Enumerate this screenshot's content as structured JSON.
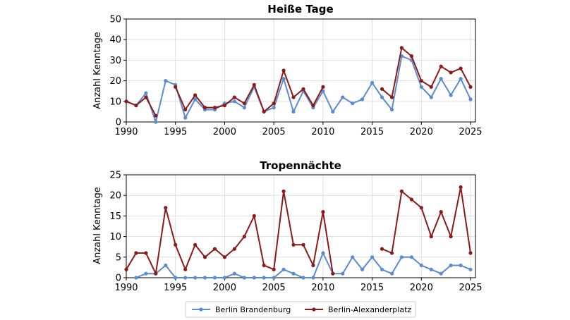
{
  "colors": {
    "brandenburg": "#5b8bd0",
    "alexanderplatz": "#8b1a1a",
    "grid": "#d9d9d9"
  },
  "legend": {
    "position": "bottom-center",
    "items": [
      "Berlin Brandenburg",
      "Berlin-Alexanderplatz"
    ]
  },
  "chart_data": [
    {
      "type": "line",
      "title": "Heiße Tage",
      "ylabel": "Anzahl Kenntage",
      "xlabel": "",
      "xlim": [
        1990,
        2025.5
      ],
      "ylim": [
        0,
        50
      ],
      "grid": true,
      "x_ticks": [
        1990,
        1995,
        2000,
        2005,
        2010,
        2015,
        2020,
        2025
      ],
      "y_ticks": [
        0,
        10,
        20,
        30,
        40,
        50
      ],
      "series": [
        {
          "name": "Berlin Brandenburg",
          "color": "#5b8bd0",
          "points": [
            [
              1990,
              10
            ],
            [
              1991,
              8
            ],
            [
              1992,
              14
            ],
            [
              1993,
              0
            ],
            [
              1994,
              20
            ],
            [
              1995,
              18
            ],
            [
              1996,
              2
            ],
            [
              1997,
              11
            ],
            [
              1998,
              6
            ],
            [
              1999,
              6
            ],
            [
              2000,
              9
            ],
            [
              2001,
              10
            ],
            [
              2002,
              7
            ],
            [
              2003,
              17
            ],
            [
              2004,
              5
            ],
            [
              2005,
              7
            ],
            [
              2006,
              21
            ],
            [
              2007,
              5
            ],
            [
              2008,
              15
            ],
            [
              2009,
              7
            ],
            [
              2010,
              15
            ],
            [
              2011,
              5
            ],
            [
              2012,
              12
            ],
            [
              2013,
              9
            ],
            [
              2014,
              11
            ],
            [
              2015,
              19
            ],
            [
              2016,
              12
            ],
            [
              2017,
              6
            ],
            [
              2018,
              32
            ],
            [
              2019,
              30
            ],
            [
              2020,
              17
            ],
            [
              2021,
              12
            ],
            [
              2022,
              21
            ],
            [
              2023,
              13
            ],
            [
              2024,
              21
            ],
            [
              2025,
              11
            ]
          ]
        },
        {
          "name": "Berlin-Alexanderplatz",
          "color": "#8b1a1a",
          "segments": [
            [
              [
                1990,
                10
              ],
              [
                1991,
                8
              ],
              [
                1992,
                12
              ],
              [
                1993,
                3
              ]
            ],
            [
              [
                1995,
                17
              ],
              [
                1996,
                6
              ],
              [
                1997,
                13
              ],
              [
                1998,
                7
              ],
              [
                1999,
                7
              ],
              [
                2000,
                8
              ],
              [
                2001,
                12
              ],
              [
                2002,
                9
              ],
              [
                2003,
                18
              ],
              [
                2004,
                5
              ],
              [
                2005,
                9
              ],
              [
                2006,
                25
              ],
              [
                2007,
                12
              ],
              [
                2008,
                16
              ],
              [
                2009,
                8
              ],
              [
                2010,
                17
              ]
            ],
            [
              [
                2016,
                16
              ],
              [
                2017,
                12
              ],
              [
                2018,
                36
              ],
              [
                2019,
                32
              ],
              [
                2020,
                20
              ],
              [
                2021,
                17
              ],
              [
                2022,
                27
              ],
              [
                2023,
                24
              ],
              [
                2024,
                26
              ],
              [
                2025,
                17
              ]
            ]
          ]
        }
      ]
    },
    {
      "type": "line",
      "title": "Tropennächte",
      "ylabel": "Anzahl Kenntage",
      "xlabel": "",
      "xlim": [
        1990,
        2025.5
      ],
      "ylim": [
        0,
        25
      ],
      "grid": true,
      "x_ticks": [
        1990,
        1995,
        2000,
        2005,
        2010,
        2015,
        2020,
        2025
      ],
      "y_ticks": [
        0,
        5,
        10,
        15,
        20,
        25
      ],
      "series": [
        {
          "name": "Berlin Brandenburg",
          "color": "#5b8bd0",
          "points": [
            [
              1991,
              0
            ],
            [
              1992,
              1
            ],
            [
              1993,
              1
            ],
            [
              1994,
              3
            ],
            [
              1995,
              0
            ],
            [
              1996,
              0
            ],
            [
              1997,
              0
            ],
            [
              1998,
              0
            ],
            [
              1999,
              0
            ],
            [
              2000,
              0
            ],
            [
              2001,
              1
            ],
            [
              2002,
              0
            ],
            [
              2003,
              0
            ],
            [
              2004,
              0
            ],
            [
              2005,
              0
            ],
            [
              2006,
              2
            ],
            [
              2007,
              1
            ],
            [
              2008,
              0
            ],
            [
              2009,
              0
            ],
            [
              2010,
              6
            ],
            [
              2011,
              1
            ],
            [
              2012,
              1
            ],
            [
              2013,
              5
            ],
            [
              2014,
              2
            ],
            [
              2015,
              5
            ],
            [
              2016,
              2
            ],
            [
              2017,
              1
            ],
            [
              2018,
              5
            ],
            [
              2019,
              5
            ],
            [
              2020,
              3
            ],
            [
              2021,
              2
            ],
            [
              2022,
              1
            ],
            [
              2023,
              3
            ],
            [
              2024,
              3
            ],
            [
              2025,
              2
            ]
          ]
        },
        {
          "name": "Berlin-Alexanderplatz",
          "color": "#8b1a1a",
          "segments": [
            [
              [
                1990,
                2
              ],
              [
                1991,
                6
              ],
              [
                1992,
                6
              ],
              [
                1993,
                1
              ],
              [
                1994,
                17
              ],
              [
                1995,
                8
              ],
              [
                1996,
                2
              ],
              [
                1997,
                8
              ],
              [
                1998,
                5
              ],
              [
                1999,
                7
              ],
              [
                2000,
                5
              ],
              [
                2001,
                7
              ],
              [
                2002,
                10
              ],
              [
                2003,
                15
              ],
              [
                2004,
                3
              ],
              [
                2005,
                2
              ],
              [
                2006,
                21
              ],
              [
                2007,
                8
              ],
              [
                2008,
                8
              ],
              [
                2009,
                3
              ],
              [
                2010,
                16
              ],
              [
                2011,
                1
              ]
            ],
            [
              [
                2016,
                7
              ],
              [
                2017,
                6
              ],
              [
                2018,
                21
              ],
              [
                2019,
                19
              ],
              [
                2020,
                17
              ],
              [
                2021,
                10
              ],
              [
                2022,
                16
              ],
              [
                2023,
                10
              ],
              [
                2024,
                22
              ],
              [
                2025,
                6
              ]
            ]
          ]
        }
      ]
    }
  ]
}
